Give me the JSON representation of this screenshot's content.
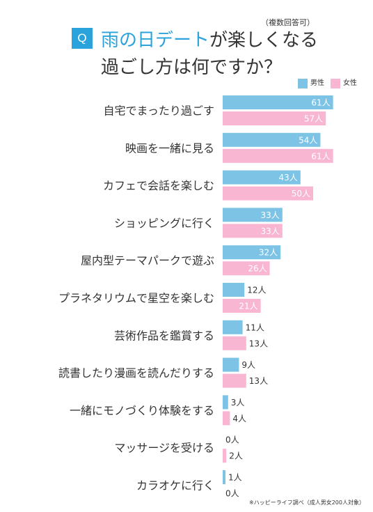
{
  "header": {
    "badge": "Q",
    "title_highlight": "雨の日デート",
    "title_rest": "が楽しくなる",
    "title_line2": "過ごし方は何ですか？",
    "note": "（複数回答可）"
  },
  "footer": {
    "note": "※ハッピーライフ調べ（成人男女200人対象）"
  },
  "chart_data": {
    "type": "bar",
    "orientation": "horizontal",
    "unit": "人",
    "legend_position": "top-right",
    "categories": [
      "自宅でまったり過ごす",
      "映画を一緒に見る",
      "カフェで会話を楽しむ",
      "ショッピングに行く",
      "屋内型テーマパークで遊ぶ",
      "プラネタリウムで星空を楽しむ",
      "芸術作品を鑑賞する",
      "読書したり漫画を読んだりする",
      "一緒にモノづくり体験をする",
      "マッサージを受ける",
      "カラオケに行く"
    ],
    "series": [
      {
        "name": "男性",
        "color": "#7cc3e6",
        "values": [
          61,
          54,
          43,
          33,
          32,
          12,
          11,
          9,
          3,
          0,
          1
        ]
      },
      {
        "name": "女性",
        "color": "#f8b6d2",
        "values": [
          57,
          61,
          50,
          33,
          26,
          21,
          13,
          13,
          4,
          2,
          0
        ]
      }
    ]
  }
}
